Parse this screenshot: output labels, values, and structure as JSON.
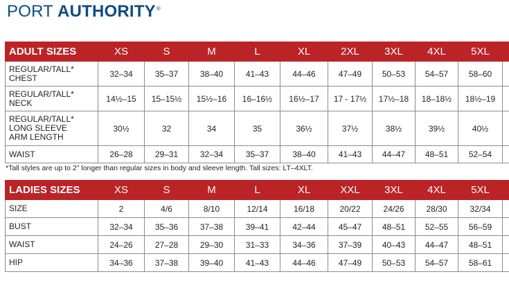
{
  "brand": {
    "part1": "PORT",
    "part2": "AUTHORITY",
    "mark": "®",
    "color": "#0f4c81"
  },
  "accent": "#bb2327",
  "adult": {
    "header": "ADULT SIZES",
    "sizes": [
      "XS",
      "S",
      "M",
      "L",
      "XL",
      "2XL",
      "3XL",
      "4XL",
      "5XL"
    ],
    "rows": [
      {
        "label": "REGULAR/TALL*\nCHEST",
        "values": [
          "32–34",
          "35–37",
          "38–40",
          "41–43",
          "44–46",
          "47–49",
          "50–53",
          "54–57",
          "58–60"
        ]
      },
      {
        "label": "REGULAR/TALL*\nNECK",
        "values": [
          "14½–15",
          "15–15½",
          "15½–16",
          "16–16½",
          "16½–17",
          "17 - 17½",
          "17½–18",
          "18–18½",
          "18½–19"
        ]
      },
      {
        "label": "REGULAR/TALL*\nLONG SLEEVE\nARM LENGTH",
        "values": [
          "30½",
          "32",
          "34",
          "35",
          "36½",
          "37½",
          "38½",
          "39½",
          "40½"
        ]
      },
      {
        "label": "WAIST",
        "values": [
          "26–28",
          "29–31",
          "32–34",
          "35–37",
          "38–40",
          "41–43",
          "44–47",
          "48–51",
          "52–54"
        ]
      }
    ],
    "note": "*Tall styles are up to 2\" longer than regular sizes in body and sleeve length. Tall sizes: LT–4XLT."
  },
  "ladies": {
    "header": "LADIES SIZES",
    "sizes": [
      "XS",
      "S",
      "M",
      "L",
      "XL",
      "XXL",
      "3XL",
      "4XL",
      "5XL"
    ],
    "rows": [
      {
        "label": "SIZE",
        "values": [
          "2",
          "4/6",
          "8/10",
          "12/14",
          "16/18",
          "20/22",
          "24/26",
          "28/30",
          "32/34"
        ]
      },
      {
        "label": "BUST",
        "values": [
          "32–34",
          "35–36",
          "37–38",
          "39–41",
          "42–44",
          "45–47",
          "48–51",
          "52–55",
          "56–59"
        ]
      },
      {
        "label": "WAIST",
        "values": [
          "24–26",
          "27–28",
          "29–30",
          "31–33",
          "34–36",
          "37–39",
          "40–43",
          "44–47",
          "48–51"
        ]
      },
      {
        "label": "HIP",
        "values": [
          "34–36",
          "37–38",
          "39–40",
          "41–43",
          "44–46",
          "47–49",
          "50–53",
          "54–57",
          "58–61"
        ]
      }
    ]
  }
}
